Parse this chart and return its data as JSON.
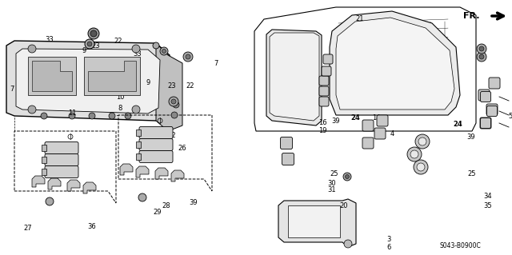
{
  "bg_color": "#ffffff",
  "fig_width": 6.4,
  "fig_height": 3.19,
  "dpi": 100,
  "watermark": "S043-B0900C",
  "line_color": "#000000",
  "gray_fill": "#d8d8d8",
  "dark_fill": "#aaaaaa"
}
